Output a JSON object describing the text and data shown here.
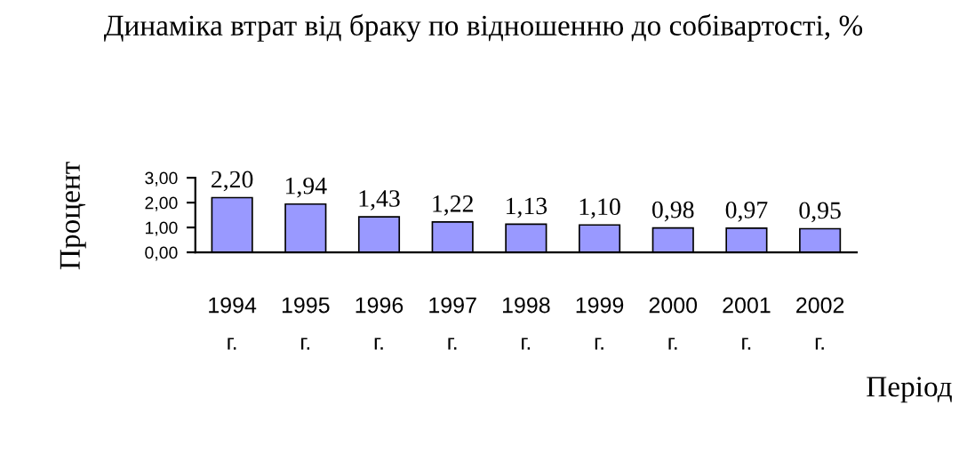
{
  "chart_data": {
    "type": "bar",
    "title": "Динаміка втрат від браку по відношенню до собівартості, %",
    "xlabel": "Період",
    "ylabel": "Процент",
    "categories": [
      "1994 г.",
      "1995 г.",
      "1996 г.",
      "1997 г.",
      "1998 г.",
      "1999 г.",
      "2000 г.",
      "2001 г.",
      "2002 г."
    ],
    "values": [
      2.2,
      1.94,
      1.43,
      1.22,
      1.13,
      1.1,
      0.98,
      0.97,
      0.95
    ],
    "value_labels": [
      "2,20",
      "1,94",
      "1,43",
      "1,22",
      "1,13",
      "1,10",
      "0,98",
      "0,97",
      "0,95"
    ],
    "color": "#9999ff",
    "ylim": [
      0,
      3
    ],
    "yticks": [
      {
        "value": 0,
        "label": "0,00"
      },
      {
        "value": 1,
        "label": "1,00"
      },
      {
        "value": 2,
        "label": "2,00"
      },
      {
        "value": 3,
        "label": "3,00"
      }
    ],
    "grid": false,
    "legend": false
  }
}
